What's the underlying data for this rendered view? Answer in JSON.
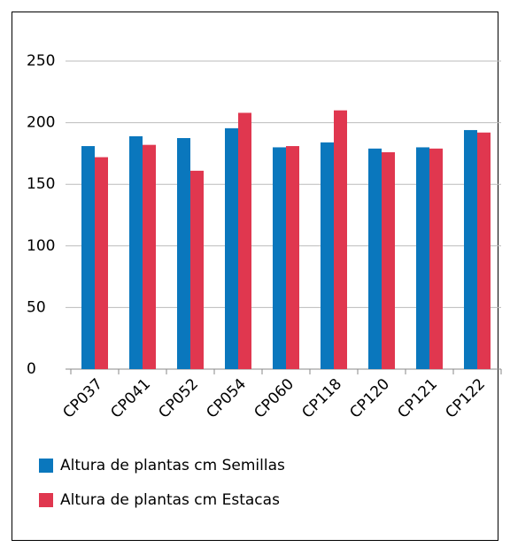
{
  "chart_data": {
    "type": "bar",
    "categories": [
      "CP037",
      "CP041",
      "CP052",
      "CP054",
      "CP060",
      "CP118",
      "CP120",
      "CP121",
      "CP122"
    ],
    "series": [
      {
        "name": "Altura de plantas cm Semillas",
        "color": "#0a77bd",
        "values": [
          181,
          189,
          187.5,
          195.5,
          180,
          184,
          179,
          180,
          194
        ]
      },
      {
        "name": "Altura de plantas cm Estacas",
        "color": "#e0374f",
        "values": [
          172,
          182,
          161,
          208,
          181,
          210,
          176,
          179,
          192
        ]
      }
    ],
    "ylim": [
      0,
      250
    ],
    "yticks": [
      0,
      50,
      100,
      150,
      200,
      250
    ],
    "grid": true
  }
}
